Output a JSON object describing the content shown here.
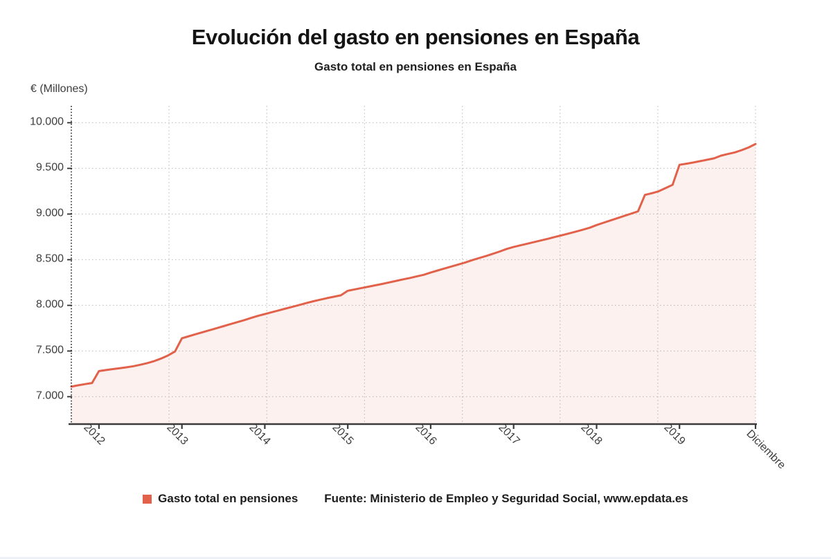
{
  "title": "Evolución del gasto en pensiones en España",
  "subtitle": "Gasto total en pensiones en España",
  "y_axis_title": "€ (Millones)",
  "legend": {
    "label": "Gasto total en pensiones",
    "color": "#e2614a"
  },
  "source": "Fuente: Ministerio de Empleo y Seguridad Social, www.epdata.es",
  "colors": {
    "line": "#e2614a",
    "area_fill": "#e2614a",
    "area_opacity": 0.09,
    "grid": "#c9c9c9",
    "axis": "#3a3a3a",
    "text": "#3d3d3d"
  },
  "chart_data": {
    "type": "area",
    "title": "Evolución del gasto en pensiones en España",
    "subtitle": "Gasto total en pensiones en España",
    "ylabel": "€ (Millones)",
    "ylim": [
      6700,
      10170
    ],
    "grid": true,
    "legend_position": "bottom",
    "y_ticks": [
      7000,
      7500,
      8000,
      8500,
      9000,
      9500,
      10000
    ],
    "y_tick_labels": [
      "7.000",
      "7.500",
      "8.000",
      "8.500",
      "9.000",
      "9.500",
      "10.000"
    ],
    "x_tick_labels": [
      "2012",
      "2013",
      "2014",
      "2015",
      "2016",
      "2017",
      "2018",
      "2019",
      "Diciembre"
    ],
    "x_tick_indices": [
      4,
      16,
      28,
      40,
      52,
      64,
      76,
      88,
      99
    ],
    "series": [
      {
        "name": "Gasto total en pensiones",
        "color": "#e2614a",
        "frequency": "monthly",
        "values": [
          7110,
          7125,
          7138,
          7150,
          7280,
          7292,
          7302,
          7312,
          7322,
          7334,
          7350,
          7368,
          7390,
          7418,
          7452,
          7495,
          7640,
          7662,
          7684,
          7706,
          7728,
          7750,
          7772,
          7794,
          7816,
          7838,
          7862,
          7885,
          7905,
          7925,
          7945,
          7965,
          7985,
          8005,
          8025,
          8045,
          8062,
          8080,
          8095,
          8110,
          8160,
          8175,
          8190,
          8205,
          8220,
          8235,
          8252,
          8268,
          8285,
          8300,
          8318,
          8335,
          8360,
          8382,
          8404,
          8426,
          8448,
          8470,
          8495,
          8518,
          8540,
          8565,
          8590,
          8618,
          8640,
          8658,
          8676,
          8694,
          8712,
          8730,
          8750,
          8768,
          8788,
          8808,
          8828,
          8850,
          8880,
          8905,
          8930,
          8955,
          8980,
          9005,
          9030,
          9210,
          9228,
          9250,
          9285,
          9320,
          9540,
          9552,
          9565,
          9580,
          9595,
          9610,
          9640,
          9658,
          9675,
          9700,
          9730,
          9768
        ]
      }
    ]
  }
}
